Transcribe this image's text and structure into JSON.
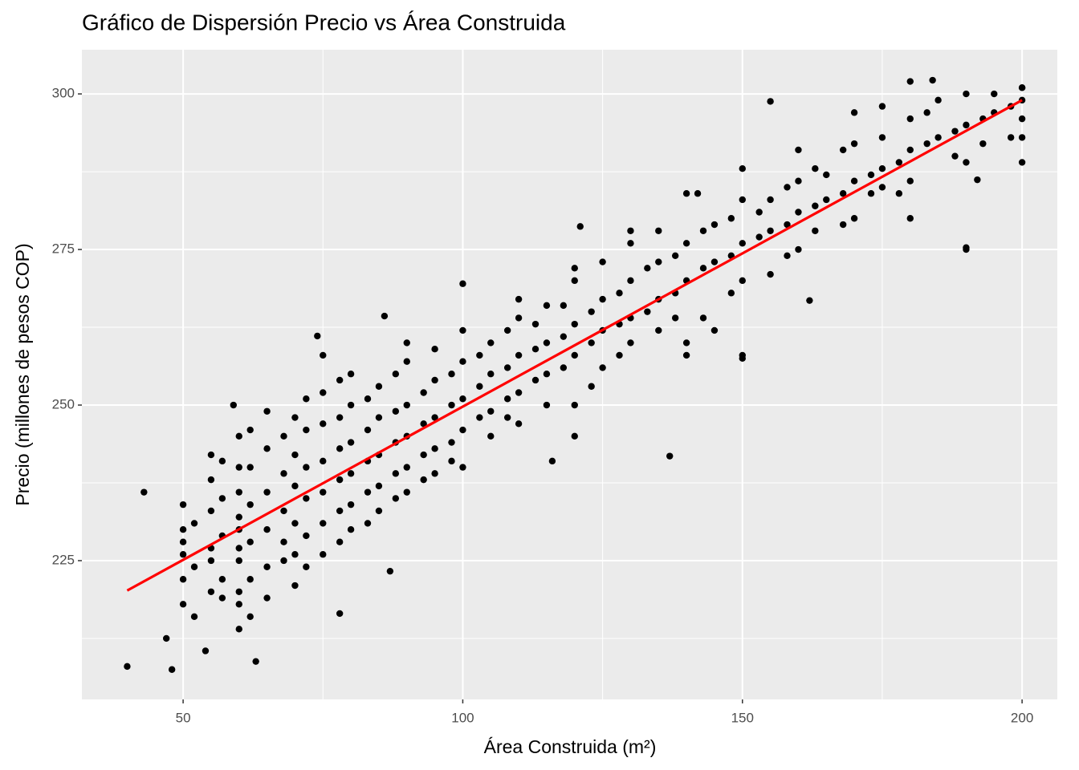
{
  "chart_data": {
    "type": "scatter",
    "title": "Gráfico de Dispersión Precio vs Área Construida",
    "x_label": "Área Construida (m²)",
    "y_label": "Precio (millones de pesos COP)",
    "xlim": [
      31.9,
      206.3
    ],
    "ylim": [
      202.7,
      307.1
    ],
    "xticks": [
      50,
      100,
      150,
      200
    ],
    "yticks": [
      225,
      250,
      275,
      300
    ],
    "x_minor_ticks": [
      75,
      125,
      175
    ],
    "y_minor_ticks": [
      212.5,
      237.5,
      262.5,
      287.5
    ],
    "grid": true,
    "series": [
      {
        "color": "#000000",
        "x": [
          40,
          48,
          63,
          47,
          54,
          137,
          155,
          190,
          184,
          100,
          86,
          74,
          43,
          59,
          78,
          121,
          150,
          162,
          142,
          192,
          116,
          87,
          50,
          50,
          50,
          50,
          50,
          50,
          52,
          52,
          52,
          55,
          55,
          55,
          55,
          55,
          55,
          57,
          57,
          57,
          57,
          57,
          60,
          60,
          60,
          60,
          60,
          60,
          60,
          60,
          60,
          60,
          62,
          62,
          62,
          62,
          62,
          62,
          65,
          65,
          65,
          65,
          65,
          65,
          68,
          68,
          68,
          68,
          68,
          70,
          70,
          70,
          70,
          70,
          70,
          72,
          72,
          72,
          72,
          72,
          72,
          75,
          75,
          75,
          75,
          75,
          75,
          75,
          78,
          78,
          78,
          78,
          78,
          78,
          80,
          80,
          80,
          80,
          80,
          80,
          83,
          83,
          83,
          83,
          83,
          85,
          85,
          85,
          85,
          85,
          88,
          88,
          88,
          88,
          88,
          90,
          90,
          90,
          90,
          90,
          90,
          93,
          93,
          93,
          93,
          95,
          95,
          95,
          95,
          95,
          98,
          98,
          98,
          98,
          100,
          100,
          100,
          100,
          100,
          103,
          103,
          103,
          105,
          105,
          105,
          105,
          108,
          108,
          108,
          108,
          110,
          110,
          110,
          110,
          110,
          113,
          113,
          113,
          115,
          115,
          115,
          115,
          118,
          118,
          118,
          120,
          120,
          120,
          120,
          120,
          120,
          123,
          123,
          123,
          125,
          125,
          125,
          125,
          128,
          128,
          128,
          130,
          130,
          130,
          130,
          130,
          133,
          133,
          135,
          135,
          135,
          135,
          138,
          138,
          138,
          140,
          140,
          140,
          140,
          140,
          143,
          143,
          143,
          145,
          145,
          145,
          148,
          148,
          148,
          150,
          150,
          150,
          150,
          150,
          153,
          153,
          155,
          155,
          155,
          158,
          158,
          158,
          160,
          160,
          160,
          160,
          163,
          163,
          163,
          165,
          165,
          168,
          168,
          168,
          170,
          170,
          170,
          170,
          173,
          173,
          175,
          175,
          175,
          175,
          178,
          178,
          180,
          180,
          180,
          180,
          180,
          183,
          183,
          185,
          185,
          188,
          188,
          190,
          190,
          190,
          190,
          193,
          193,
          195,
          195,
          198,
          198,
          200,
          200,
          200,
          200,
          200,
          200
        ],
        "values": [
          208,
          207.5,
          208.8,
          212.5,
          210.5,
          241.8,
          298.8,
          275.3,
          302.2,
          269.5,
          264.3,
          261.1,
          236,
          250,
          216.5,
          278.7,
          257.5,
          266.8,
          284,
          286.2,
          241,
          223.3,
          218,
          222,
          226,
          230,
          234,
          228,
          224,
          231,
          216,
          220,
          227,
          233,
          238,
          225,
          242,
          222,
          229,
          235,
          241,
          219,
          214,
          220,
          225,
          230,
          236,
          240,
          245,
          232,
          227,
          218,
          222,
          228,
          234,
          240,
          246,
          216,
          224,
          230,
          236,
          243,
          219,
          249,
          228,
          233,
          239,
          225,
          245,
          226,
          231,
          237,
          242,
          248,
          221,
          229,
          235,
          240,
          246,
          251,
          224,
          231,
          236,
          241,
          247,
          252,
          226,
          258,
          233,
          238,
          243,
          248,
          254,
          228,
          234,
          239,
          244,
          250,
          230,
          255,
          236,
          241,
          246,
          251,
          231,
          237,
          242,
          248,
          253,
          233,
          239,
          244,
          249,
          255,
          235,
          240,
          245,
          250,
          257,
          236,
          260,
          242,
          247,
          252,
          238,
          243,
          248,
          254,
          259,
          239,
          244,
          250,
          255,
          241,
          246,
          251,
          257,
          240,
          262,
          248,
          253,
          258,
          249,
          255,
          260,
          245,
          251,
          256,
          262,
          248,
          252,
          258,
          264,
          247,
          267,
          254,
          259,
          263,
          255,
          260,
          266,
          250,
          256,
          261,
          266,
          258,
          263,
          270,
          250,
          245,
          272,
          260,
          265,
          253,
          262,
          267,
          273,
          256,
          263,
          268,
          258,
          264,
          270,
          276,
          260,
          278,
          265,
          272,
          267,
          273,
          262,
          278,
          268,
          274,
          264,
          270,
          276,
          260,
          284,
          258,
          272,
          278,
          264,
          273,
          279,
          262,
          274,
          280,
          268,
          276,
          283,
          270,
          288,
          258,
          277,
          281,
          278,
          283,
          271,
          279,
          285,
          274,
          281,
          286,
          275,
          291,
          282,
          288,
          278,
          283,
          287,
          284,
          291,
          279,
          286,
          292,
          280,
          297,
          287,
          284,
          288,
          293,
          285,
          298,
          289,
          284,
          291,
          296,
          286,
          280,
          302,
          292,
          297,
          293,
          299,
          294,
          290,
          295,
          300,
          289,
          275,
          296,
          292,
          297,
          300,
          298,
          293,
          299,
          301,
          296,
          293,
          289,
          301
        ]
      }
    ],
    "trend": {
      "color": "#ff0000",
      "x": [
        40,
        200
      ],
      "values": [
        220.2,
        299
      ]
    }
  }
}
